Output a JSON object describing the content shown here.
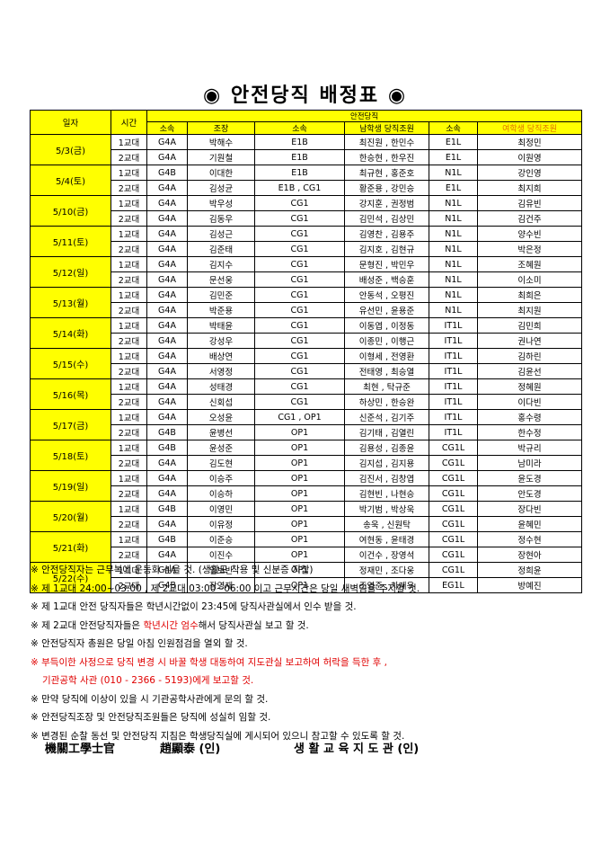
{
  "title": "◉ 안전당직 배정표 ◉",
  "table": {
    "col_date": "일자",
    "col_time": "시간",
    "group_header": "안전당직",
    "sub_headers": [
      "소속",
      "조장",
      "소속",
      "남학생 당직조원",
      "소속",
      "여학생 당직조원"
    ],
    "days": [
      {
        "date": "5/3(금)",
        "rows": [
          [
            "1교대",
            "G4A",
            "박해수",
            "E1B",
            "최진원 , 한민수",
            "E1L",
            "최정민"
          ],
          [
            "2교대",
            "G4A",
            "기원철",
            "E1B",
            "한승현 , 한우진",
            "E1L",
            "이원영"
          ]
        ]
      },
      {
        "date": "5/4(토)",
        "rows": [
          [
            "1교대",
            "G4B",
            "이대한",
            "E1B",
            "최규현 , 홍준호",
            "N1L",
            "강인영"
          ],
          [
            "2교대",
            "G4A",
            "김성균",
            "E1B , CG1",
            "황준용 , 강민승",
            "E1L",
            "최지희"
          ]
        ]
      },
      {
        "date": "5/10(금)",
        "rows": [
          [
            "1교대",
            "G4A",
            "박우성",
            "CG1",
            "강지훈 , 권정범",
            "N1L",
            "김유빈"
          ],
          [
            "2교대",
            "G4A",
            "김동우",
            "CG1",
            "김민석 , 김상민",
            "N1L",
            "김건주"
          ]
        ]
      },
      {
        "date": "5/11(토)",
        "rows": [
          [
            "1교대",
            "G4A",
            "김성근",
            "CG1",
            "김영찬 , 김용주",
            "N1L",
            "양수빈"
          ],
          [
            "2교대",
            "G4A",
            "김준태",
            "CG1",
            "김지호 , 김현규",
            "N1L",
            "박은정"
          ]
        ]
      },
      {
        "date": "5/12(일)",
        "rows": [
          [
            "1교대",
            "G4A",
            "김지수",
            "CG1",
            "문형진 , 박민우",
            "N1L",
            "조혜원"
          ],
          [
            "2교대",
            "G4A",
            "문선웅",
            "CG1",
            "배성준 , 백승훈",
            "N1L",
            "이소미"
          ]
        ]
      },
      {
        "date": "5/13(월)",
        "rows": [
          [
            "1교대",
            "G4A",
            "김민준",
            "CG1",
            "안동석 , 오평진",
            "N1L",
            "최희은"
          ],
          [
            "2교대",
            "G4A",
            "박준용",
            "CG1",
            "유선민 , 윤용준",
            "N1L",
            "최지원"
          ]
        ]
      },
      {
        "date": "5/14(화)",
        "rows": [
          [
            "1교대",
            "G4A",
            "박태윤",
            "CG1",
            "이동엽 , 이정동",
            "IT1L",
            "김민희"
          ],
          [
            "2교대",
            "G4A",
            "강성우",
            "CG1",
            "이종민 , 이행근",
            "IT1L",
            "권나연"
          ]
        ]
      },
      {
        "date": "5/15(수)",
        "rows": [
          [
            "1교대",
            "G4A",
            "배상연",
            "CG1",
            "이형세 , 전영환",
            "IT1L",
            "김하린"
          ],
          [
            "2교대",
            "G4A",
            "서영정",
            "CG1",
            "전태영 , 최승열",
            "IT1L",
            "김윤선"
          ]
        ]
      },
      {
        "date": "5/16(목)",
        "rows": [
          [
            "1교대",
            "G4A",
            "성태경",
            "CG1",
            "최현 , 탁규준",
            "IT1L",
            "정혜원"
          ],
          [
            "2교대",
            "G4A",
            "신회섭",
            "CG1",
            "하상민 , 한승완",
            "IT1L",
            "이다빈"
          ]
        ]
      },
      {
        "date": "5/17(금)",
        "rows": [
          [
            "1교대",
            "G4A",
            "오성윤",
            "CG1 , OP1",
            "신준석 , 김기주",
            "IT1L",
            "홍수령"
          ],
          [
            "2교대",
            "G4B",
            "윤병선",
            "OP1",
            "김기태 , 김열린",
            "IT1L",
            "한수정"
          ]
        ]
      },
      {
        "date": "5/18(토)",
        "rows": [
          [
            "1교대",
            "G4B",
            "윤성준",
            "OP1",
            "김용성 , 김종윤",
            "CG1L",
            "박규리"
          ],
          [
            "2교대",
            "G4A",
            "김도현",
            "OP1",
            "김지섭 , 김지용",
            "CG1L",
            "남미라"
          ]
        ]
      },
      {
        "date": "5/19(일)",
        "rows": [
          [
            "1교대",
            "G4A",
            "이승주",
            "OP1",
            "김진서 , 김창엽",
            "CG1L",
            "윤도경"
          ],
          [
            "2교대",
            "G4A",
            "이승하",
            "OP1",
            "김현빈 , 나현승",
            "CG1L",
            "안도경"
          ]
        ]
      },
      {
        "date": "5/20(월)",
        "rows": [
          [
            "1교대",
            "G4B",
            "이영민",
            "OP1",
            "박기범 , 박상욱",
            "CG1L",
            "장다빈"
          ],
          [
            "2교대",
            "G4A",
            "이유정",
            "OP1",
            "송욱 , 신원탁",
            "CG1L",
            "윤혜민"
          ]
        ]
      },
      {
        "date": "5/21(화)",
        "rows": [
          [
            "1교대",
            "G4B",
            "이준승",
            "OP1",
            "여현동 , 윤태경",
            "CG1L",
            "정수현"
          ],
          [
            "2교대",
            "G4A",
            "이진수",
            "OP1",
            "이건수 , 장영석",
            "CG1L",
            "장현아"
          ]
        ]
      },
      {
        "date": "5/22(수)",
        "rows": [
          [
            "1교대",
            "G4A",
            "임보빈",
            "OP1",
            "정재민 , 조다웅",
            "CG1L",
            "정희윤"
          ],
          [
            "2교대",
            "G4B",
            "장영재",
            "OP1",
            "조영준 , 차재욱",
            "EG1L",
            "방예진"
          ]
        ]
      }
    ]
  },
  "notes": [
    "※ 안전당직자는 근무복에 운동화 신을 것. (생활모 착용 및 신분증 지참)",
    "※ 제 1교대 24:00~03:00 , 제 2교대 03:00~06:00 이고 근무시간은 당일 새벽임을 주지할 것.",
    "※ 제 1교대 안전 당직자들은 학년시간없이 23:45에 당직사관실에서 인수 받을 것.",
    "※ 안전당직자 총원은 당일 아침 인원점검을 열외 할 것.",
    "※ 만약 당직에 이상이 있을 시 기관공학사관에게 문의 할 것.",
    "※ 안전당직조장 및 안전당직조원들은 당직에 성실히 임할 것.",
    "※ 변경된 순찰 동선 및 안전당직 지침은 학생당직실에 게시되어 있으니 참고할 수 있도록 할 것."
  ],
  "note4": {
    "pre": "※ 제 2교대 안전당직자들은 ",
    "highlight": "학년시간 엄수",
    "post": "해서 당직사관실 보고 할 것."
  },
  "note_red": [
    "※ 부득이한 사정으로 당직 변경 시 바꿀 학생 대동하여 지도관실 보고하여 허락을 득한 후 ,",
    "기관공학 사관 (010 - 2366 - 5193)에게 보고할 것."
  ],
  "signature": {
    "left_title": "機關工學士官",
    "left_name": "趙顯泰 (인)",
    "right": "생 활 교 육 지 도 관 (인)"
  }
}
